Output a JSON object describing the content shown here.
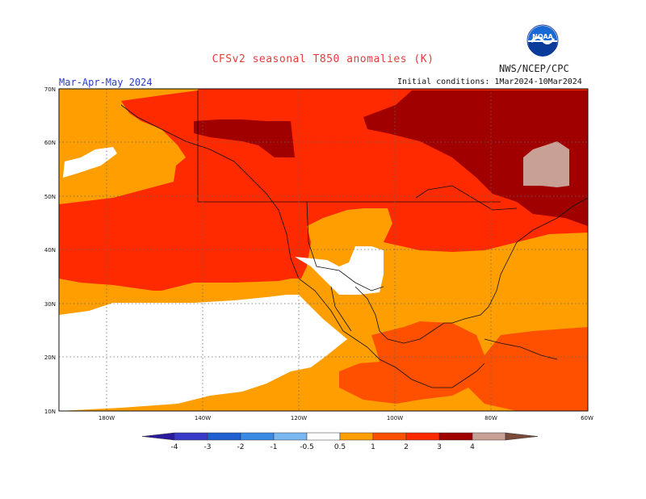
{
  "title": "CFSv2 seasonal T850 anomalies (K)",
  "agency": "NWS/NCEP/CPC",
  "season": "Mar-Apr-May 2024",
  "initial_conditions": "Initial conditions: 1Mar2024-10Mar2024",
  "logo": {
    "icon": "noaa-logo-icon",
    "text": "NOAA"
  },
  "map": {
    "lat_labels": [
      "70N",
      "60N",
      "50N",
      "40N",
      "30N",
      "20N",
      "10N"
    ],
    "lon_labels": [
      "180W",
      "140W",
      "120W",
      "100W",
      "80W",
      "60W"
    ]
  },
  "colorbar": {
    "labels": [
      "-4",
      "-3",
      "-2",
      "-1",
      "-0.5",
      "0.5",
      "1",
      "2",
      "3",
      "4"
    ],
    "bins": [
      {
        "range": "< -4",
        "color": "#2a1aa0"
      },
      {
        "range": "-4 to -3",
        "color": "#3a3ac8"
      },
      {
        "range": "-3 to -2",
        "color": "#1f5fd0"
      },
      {
        "range": "-2 to -1",
        "color": "#3a8ae6"
      },
      {
        "range": "-1 to -0.5",
        "color": "#7ab8f2"
      },
      {
        "range": "-0.5 to 0.5",
        "color": "#ffffff"
      },
      {
        "range": "0.5 to 1",
        "color": "#ff9e00"
      },
      {
        "range": "1 to 2",
        "color": "#ff5000"
      },
      {
        "range": "2 to 3",
        "color": "#ff2a00"
      },
      {
        "range": "3 to 4",
        "color": "#a00000"
      },
      {
        "range": "4 to 5",
        "color": "#c9a095"
      },
      {
        "range": "> 5",
        "color": "#7a4a3a"
      }
    ]
  },
  "colors": {
    "white": "#ffffff",
    "orange": "#ff9e00",
    "light_red": "#ff5000",
    "red": "#ff2a00",
    "dark_red": "#a00000",
    "pink": "#c9a095"
  }
}
